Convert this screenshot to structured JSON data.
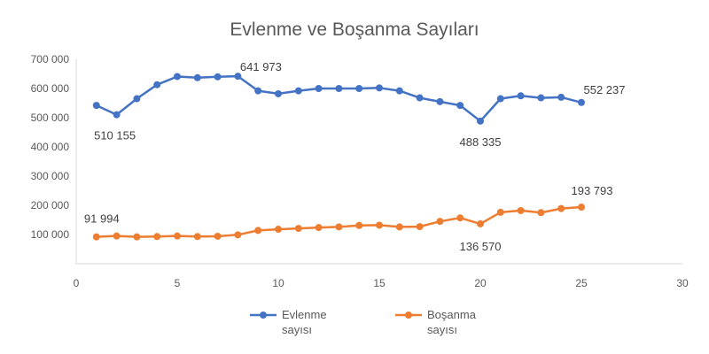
{
  "chart_data": {
    "type": "line",
    "title": "Evlenme ve Boşanma Sayıları",
    "xlabel": "",
    "ylabel": "",
    "xlim": [
      0,
      30
    ],
    "ylim": [
      0,
      700000
    ],
    "x_ticks": [
      "0",
      "5",
      "10",
      "15",
      "20",
      "25",
      "30"
    ],
    "y_ticks": [
      "0",
      "100 000",
      "200 000",
      "300 000",
      "400 000",
      "500 000",
      "600 000",
      "700 000"
    ],
    "grid": false,
    "legend_position": "bottom",
    "series": [
      {
        "name_lines": [
          "Evlenme",
          "sayısı"
        ],
        "color": "#4472C4",
        "x": [
          1,
          2,
          3,
          4,
          5,
          6,
          7,
          8,
          9,
          10,
          11,
          12,
          13,
          14,
          15,
          16,
          17,
          18,
          19,
          20,
          21,
          22,
          23,
          24,
          25
        ],
        "y": [
          542000,
          510155,
          565000,
          613000,
          641000,
          637000,
          640000,
          641973,
          592000,
          582000,
          592000,
          600000,
          600000,
          600000,
          602000,
          592000,
          568000,
          555000,
          542000,
          488335,
          565000,
          575000,
          568000,
          570000,
          552237
        ]
      },
      {
        "name_lines": [
          "Boşanma",
          "sayısı"
        ],
        "color": "#ED7D31",
        "x": [
          1,
          2,
          3,
          4,
          5,
          6,
          7,
          8,
          9,
          10,
          11,
          12,
          13,
          14,
          15,
          16,
          17,
          18,
          19,
          20,
          21,
          22,
          23,
          24,
          25
        ],
        "y": [
          91994,
          95000,
          92000,
          93000,
          95000,
          93000,
          94000,
          99000,
          114000,
          118000,
          121000,
          124000,
          126000,
          131000,
          132000,
          126000,
          127000,
          145000,
          157000,
          136570,
          176000,
          182000,
          175000,
          189000,
          193793
        ]
      }
    ],
    "annotations": [
      {
        "text": "510 155",
        "x": 2,
        "y": 510155,
        "series": 0
      },
      {
        "text": "641 973",
        "x": 8,
        "y": 641973,
        "series": 0
      },
      {
        "text": "488 335",
        "x": 20,
        "y": 488335,
        "series": 0
      },
      {
        "text": "552 237",
        "x": 25,
        "y": 552237,
        "series": 0
      },
      {
        "text": "91 994",
        "x": 1,
        "y": 91994,
        "series": 1
      },
      {
        "text": "136 570",
        "x": 20,
        "y": 136570,
        "series": 1
      },
      {
        "text": "193 793",
        "x": 25,
        "y": 193793,
        "series": 1
      }
    ]
  }
}
